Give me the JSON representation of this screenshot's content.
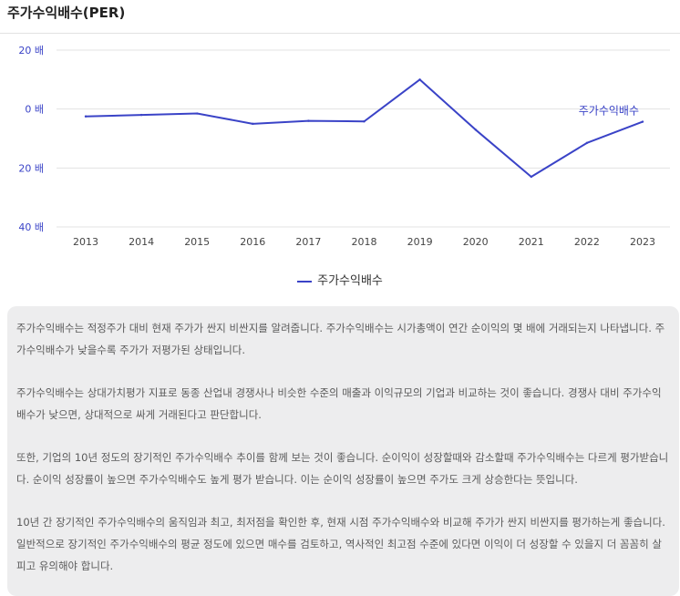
{
  "page": {
    "title": "주가수익배수(PER)",
    "legend_label": "주가수익배수"
  },
  "chart_data": {
    "type": "line",
    "title": "",
    "xlabel": "",
    "ylabel": "",
    "y_tick_labels": [
      "20 배",
      "0 배",
      "20 배",
      "40 배"
    ],
    "x": [
      "2013",
      "2014",
      "2015",
      "2016",
      "2017",
      "2018",
      "2019",
      "2020",
      "2021",
      "2022",
      "2023"
    ],
    "series": [
      {
        "name": "주가수익배수",
        "values": [
          -2.5,
          -2,
          -1.5,
          -5,
          -4,
          -4.2,
          10,
          -7,
          -23,
          -11.5,
          -4.3
        ],
        "color": "#3a43c7"
      }
    ],
    "ylim": [
      -40,
      20
    ],
    "grid": "horizontal",
    "legend": "bottom-center",
    "annotations": [
      {
        "text": "주가수익배수",
        "x": "2023"
      }
    ]
  },
  "description": [
    "주가수익배수는 적정주가 대비 현재 주가가 싼지 비싼지를 알려줍니다. 주가수익배수는 시가총액이 연간 순이익의 몇 배에 거래되는지 나타냅니다. 주가수익배수가 낮을수록 주가가 저평가된 상태입니다.",
    "주가수익배수는 상대가치평가 지표로 동종 산업내 경쟁사나 비슷한 수준의 매출과 이익규모의 기업과 비교하는 것이 좋습니다. 경쟁사 대비 주가수익배수가 낮으면, 상대적으로 싸게 거래된다고 판단합니다.",
    "또한, 기업의 10년 정도의 장기적인 주가수익배수 추이를 함께 보는 것이 좋습니다. 순이익이 성장할때와 감소할때 주가수익배수는 다르게 평가받습니다. 순이익 성장률이 높으면 주가수익배수도 높게 평가 받습니다. 이는 순이익 성장률이 높으면 주가도 크게 상승한다는 뜻입니다.",
    "10년 간 장기적인 주가수익배수의 움직임과 최고, 최저점을 확인한 후, 현재 시점 주가수익배수와 비교해 주가가 싼지 비싼지를 평가하는게 좋습니다. 일반적으로 장기적인 주가수익배수의 평균 정도에 있으면 매수를 검토하고, 역사적인 최고점 수준에 있다면 이익이 더 성장할 수 있을지 더 꼼꼼히 살피고 유의해야 합니다."
  ]
}
